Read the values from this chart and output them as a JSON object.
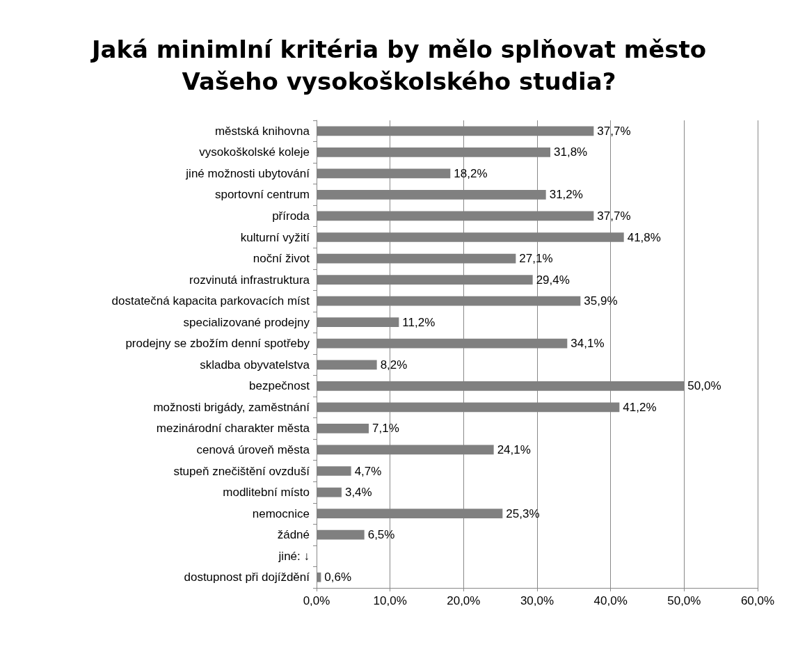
{
  "chart_data": {
    "type": "bar",
    "orientation": "horizontal",
    "title": "Jaká minimlní kritéria by mělo splňovat město\nVašeho vysokoškolského studia?",
    "categories": [
      "městská knihovna",
      "vysokoškolské koleje",
      "jiné možnosti ubytování",
      "sportovní centrum",
      "příroda",
      "kulturní vyžití",
      "noční život",
      "rozvinutá infrastruktura",
      "dostatečná kapacita parkovacích míst",
      "specializované prodejny",
      "prodejny se zbožím denní spotřeby",
      "skladba obyvatelstva",
      "bezpečnost",
      "možnosti brigády, zaměstnání",
      "mezinárodní charakter města",
      "cenová úroveň města",
      "stupeň znečištění ovzduší",
      "modlitební místo",
      "nemocnice",
      "žádné",
      "jiné: ↓",
      "dostupnost při dojíždění"
    ],
    "values": [
      37.7,
      31.8,
      18.2,
      31.2,
      37.7,
      41.8,
      27.1,
      29.4,
      35.9,
      11.2,
      34.1,
      8.2,
      50.0,
      41.2,
      7.1,
      24.1,
      4.7,
      3.4,
      25.3,
      6.5,
      null,
      0.6
    ],
    "value_labels": [
      "37,7%",
      "31,8%",
      "18,2%",
      "31,2%",
      "37,7%",
      "41,8%",
      "27,1%",
      "29,4%",
      "35,9%",
      "11,2%",
      "34,1%",
      "8,2%",
      "50,0%",
      "41,2%",
      "7,1%",
      "24,1%",
      "4,7%",
      "3,4%",
      "25,3%",
      "6,5%",
      null,
      "0,6%"
    ],
    "color": "#808080",
    "xlim": [
      0,
      60
    ],
    "xticks": [
      {
        "value": 0,
        "label": "0,0%"
      },
      {
        "value": 10,
        "label": "10,0%"
      },
      {
        "value": 20,
        "label": "20,0%"
      },
      {
        "value": 30,
        "label": "30,0%"
      },
      {
        "value": 40,
        "label": "40,0%"
      },
      {
        "value": 50,
        "label": "50,0%"
      },
      {
        "value": 60,
        "label": "60,0%"
      }
    ],
    "grid": "x"
  }
}
